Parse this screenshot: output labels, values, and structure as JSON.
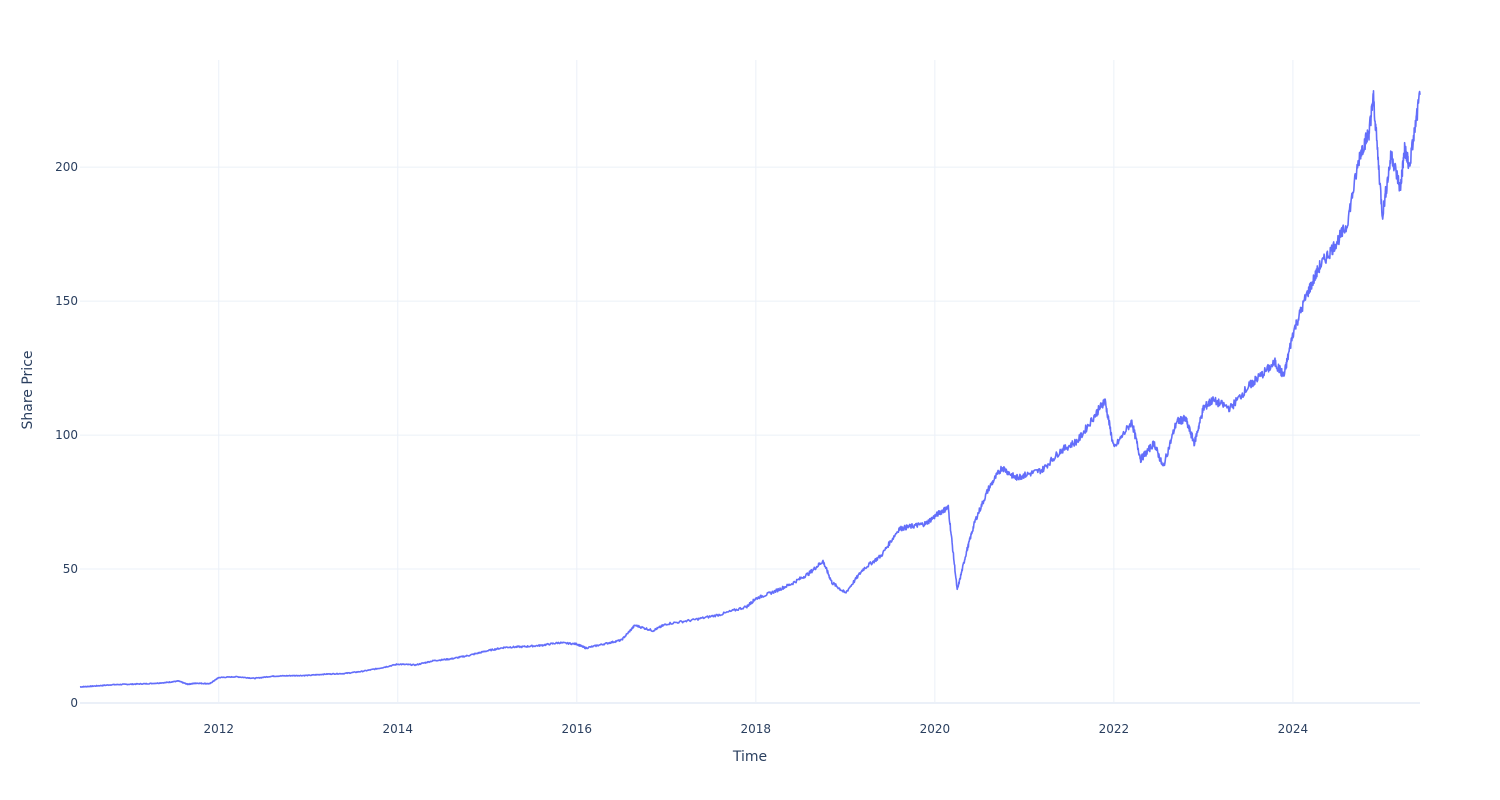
{
  "chart_data": {
    "type": "line",
    "title": "",
    "xlabel": "Time",
    "ylabel": "Share Price",
    "xlim": [
      2010.45,
      2025.42
    ],
    "ylim": [
      0,
      240
    ],
    "x_ticks": [
      2012,
      2014,
      2016,
      2018,
      2020,
      2022,
      2024
    ],
    "x_tick_labels": [
      "2012",
      "2014",
      "2016",
      "2018",
      "2020",
      "2022",
      "2024"
    ],
    "y_ticks": [
      0,
      50,
      100,
      150,
      200
    ],
    "y_tick_labels": [
      "0",
      "50",
      "100",
      "150",
      "200"
    ],
    "grid": true,
    "legend": "none",
    "series": [
      {
        "name": "Share Price",
        "color": "#636efa",
        "x": [
          2010.45,
          2010.6,
          2010.8,
          2011.0,
          2011.2,
          2011.4,
          2011.55,
          2011.65,
          2011.75,
          2011.9,
          2012.0,
          2012.2,
          2012.4,
          2012.6,
          2012.8,
          2013.0,
          2013.2,
          2013.4,
          2013.6,
          2013.8,
          2014.0,
          2014.2,
          2014.4,
          2014.6,
          2014.8,
          2015.0,
          2015.2,
          2015.4,
          2015.6,
          2015.8,
          2016.0,
          2016.1,
          2016.3,
          2016.5,
          2016.65,
          2016.85,
          2017.0,
          2017.3,
          2017.6,
          2017.9,
          2018.0,
          2018.2,
          2018.4,
          2018.6,
          2018.75,
          2018.85,
          2019.0,
          2019.2,
          2019.4,
          2019.6,
          2019.75,
          2019.9,
          2020.05,
          2020.15,
          2020.25,
          2020.35,
          2020.45,
          2020.6,
          2020.75,
          2020.9,
          2021.0,
          2021.2,
          2021.4,
          2021.6,
          2021.8,
          2021.9,
          2022.0,
          2022.2,
          2022.3,
          2022.45,
          2022.55,
          2022.7,
          2022.8,
          2022.9,
          2023.0,
          2023.1,
          2023.3,
          2023.5,
          2023.6,
          2023.8,
          2023.9,
          2024.0,
          2024.15,
          2024.3,
          2024.45,
          2024.6,
          2024.75,
          2024.85,
          2024.9,
          2025.0,
          2025.1,
          2025.2,
          2025.25,
          2025.3,
          2025.42
        ],
        "values": [
          6,
          6.3,
          6.8,
          7.0,
          7.2,
          7.6,
          8.2,
          7.0,
          7.4,
          7.2,
          9.5,
          9.8,
          9.2,
          10.0,
          10.2,
          10.3,
          10.8,
          11.0,
          11.8,
          13.0,
          14.5,
          14.2,
          15.8,
          16.5,
          17.8,
          19.5,
          20.8,
          21.0,
          21.5,
          22.5,
          22.0,
          20.5,
          22.0,
          23.5,
          29.0,
          27.0,
          29.5,
          31.0,
          33.0,
          36.0,
          39.0,
          41.5,
          44.5,
          48.5,
          53.0,
          45.0,
          41.0,
          50.0,
          55.0,
          65.0,
          66.0,
          67.0,
          71.0,
          73.0,
          42.0,
          56.0,
          68.0,
          80.0,
          88.0,
          84.0,
          85.0,
          87.0,
          94.0,
          98.0,
          108.0,
          113.0,
          95.0,
          105.0,
          91.0,
          97.0,
          88.0,
          105.0,
          106.0,
          97.0,
          110.0,
          113.0,
          110.0,
          118.0,
          121.0,
          127.0,
          122.0,
          138.0,
          152.0,
          163.0,
          170.0,
          178.0,
          205.0,
          213.0,
          226.0,
          182.0,
          205.0,
          192.0,
          207.0,
          200.0,
          227.0
        ]
      }
    ]
  }
}
